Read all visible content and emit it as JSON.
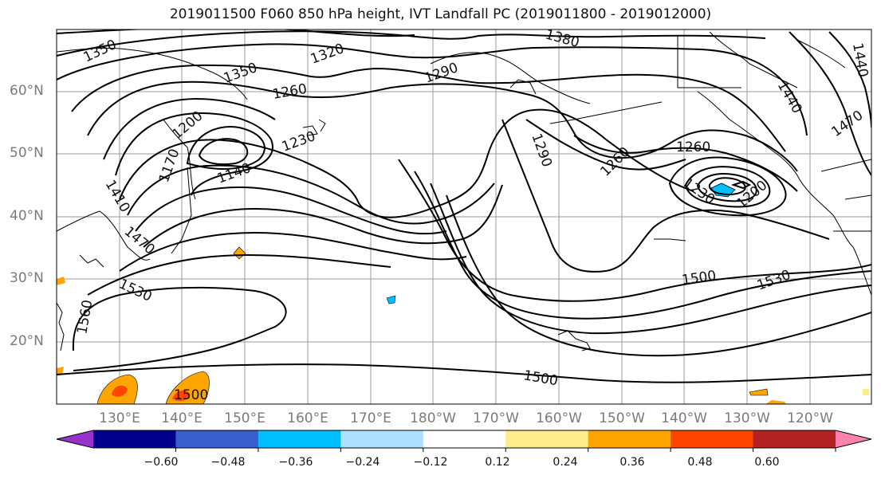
{
  "title": "2019011500 F060 850 hPa height, IVT Landfall PC (2019011800 - 2019012000)",
  "lat_labels": [
    "60°N",
    "50°N",
    "40°N",
    "30°N",
    "20°N"
  ],
  "lon_labels": [
    "130°E",
    "140°E",
    "150°E",
    "160°E",
    "170°E",
    "180°W",
    "170°W",
    "160°W",
    "150°W",
    "140°W",
    "130°W",
    "120°W"
  ],
  "contour_labels": [
    "1350",
    "1350",
    "1320",
    "1380",
    "1440",
    "1440",
    "1470",
    "1290",
    "1260",
    "1200",
    "1230",
    "1140",
    "1170",
    "1410",
    "1470",
    "1290",
    "1260",
    "1260",
    "1230",
    "1200",
    "1530",
    "1560",
    "1500",
    "1530",
    "1500",
    "1500"
  ],
  "colorbar": {
    "ticks": [
      "−0.60",
      "−0.48",
      "−0.36",
      "−0.24",
      "−0.12",
      "0.12",
      "0.24",
      "0.36",
      "0.48",
      "0.60"
    ],
    "colors": [
      "#9932cc",
      "#00008b",
      "#3a5fcd",
      "#00bfff",
      "#b0e0ff",
      "#ffffff",
      "#ffec8b",
      "#ffa500",
      "#ff4500",
      "#b22222",
      "#ff82ab"
    ]
  }
}
